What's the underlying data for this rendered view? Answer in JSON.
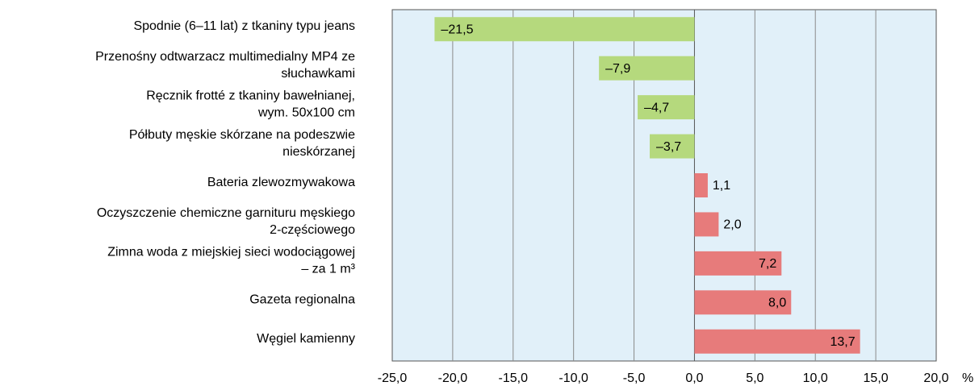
{
  "chart_data": {
    "type": "barh",
    "categories": [
      "Spodnie (6–11 lat) z tkaniny typu jeans",
      "Przenośny odtwarzacz multimedialny MP4 ze\nsłuchawkami",
      "Ręcznik frotté z tkaniny bawełnianej,\nwym. 50x100 cm",
      "Półbuty męskie skórzane na podeszwie\nnieskórzanej",
      "Bateria zlewozmywakowa",
      "Oczyszczenie chemiczne garnituru męskiego\n2-częściowego",
      "Zimna woda z miejskiej sieci wodociągowej\n– za 1 m³",
      "Gazeta regionalna",
      "Węgiel kamienny"
    ],
    "values": [
      -21.5,
      -7.9,
      -4.7,
      -3.7,
      1.1,
      2.0,
      7.2,
      8.0,
      13.7
    ],
    "value_labels": [
      "–21,5",
      "–7,9",
      "–4,7",
      "–3,7",
      "1,1",
      "2,0",
      "7,2",
      "8,0",
      "13,7"
    ],
    "negative_color": "#b5d97d",
    "positive_color": "#e77b7b",
    "xlim": [
      -25,
      20
    ],
    "xticks": [
      {
        "value": -25,
        "label": "-25,0"
      },
      {
        "value": -20,
        "label": "-20,0"
      },
      {
        "value": -15,
        "label": "-15,0"
      },
      {
        "value": -10,
        "label": "-10,0"
      },
      {
        "value": -5,
        "label": "-5,0"
      },
      {
        "value": 0,
        "label": "0,0"
      },
      {
        "value": 5,
        "label": "5,0"
      },
      {
        "value": 10,
        "label": "10,0"
      },
      {
        "value": 15,
        "label": "15,0"
      },
      {
        "value": 20,
        "label": "20,0"
      }
    ],
    "x_unit": "%",
    "grid": true
  }
}
